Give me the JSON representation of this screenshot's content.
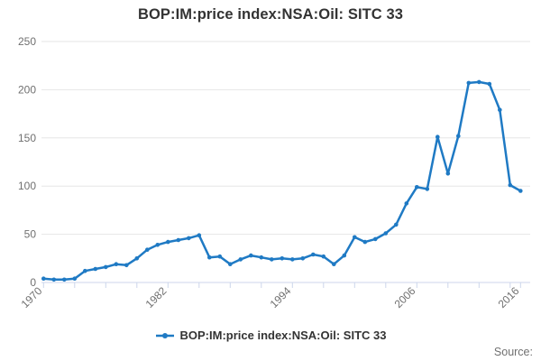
{
  "title": "BOP:IM:price index:NSA:Oil: SITC 33",
  "legend": {
    "label": "BOP:IM:price index:NSA:Oil: SITC 33"
  },
  "source_label": "Source:",
  "colors": {
    "line": "#1F7AC4",
    "grid": "#e6e6e6",
    "axis": "#ccd6eb",
    "tick_label": "#707070",
    "title_text": "#333333"
  },
  "chart_data": {
    "type": "line",
    "title": "BOP:IM:price index:NSA:Oil: SITC 33",
    "xlabel": "",
    "ylabel": "",
    "grid": "horizontal",
    "legend_position": "bottom",
    "xlim": [
      1970,
      2016
    ],
    "ylim": [
      0,
      250
    ],
    "yticks": [
      0,
      50,
      100,
      150,
      200,
      250
    ],
    "xticks_labeled": [
      1970,
      1982,
      1994,
      2006,
      2016
    ],
    "xtick_step_years": 3,
    "x": [
      1970,
      1971,
      1972,
      1973,
      1974,
      1975,
      1976,
      1977,
      1978,
      1979,
      1980,
      1981,
      1982,
      1983,
      1984,
      1985,
      1986,
      1987,
      1988,
      1989,
      1990,
      1991,
      1992,
      1993,
      1994,
      1995,
      1996,
      1997,
      1998,
      1999,
      2000,
      2001,
      2002,
      2003,
      2004,
      2005,
      2006,
      2007,
      2008,
      2009,
      2010,
      2011,
      2012,
      2013,
      2014,
      2015,
      2016
    ],
    "series": [
      {
        "name": "BOP:IM:price index:NSA:Oil: SITC 33",
        "values": [
          4,
          3,
          3,
          4,
          12,
          14,
          16,
          19,
          18,
          25,
          34,
          39,
          42,
          44,
          46,
          49,
          26,
          27,
          19,
          24,
          28,
          26,
          24,
          25,
          24,
          25,
          29,
          27,
          19,
          28,
          47,
          42,
          45,
          51,
          60,
          82,
          99,
          97,
          151,
          113,
          152,
          207,
          208,
          206,
          179,
          101,
          95
        ]
      }
    ]
  }
}
